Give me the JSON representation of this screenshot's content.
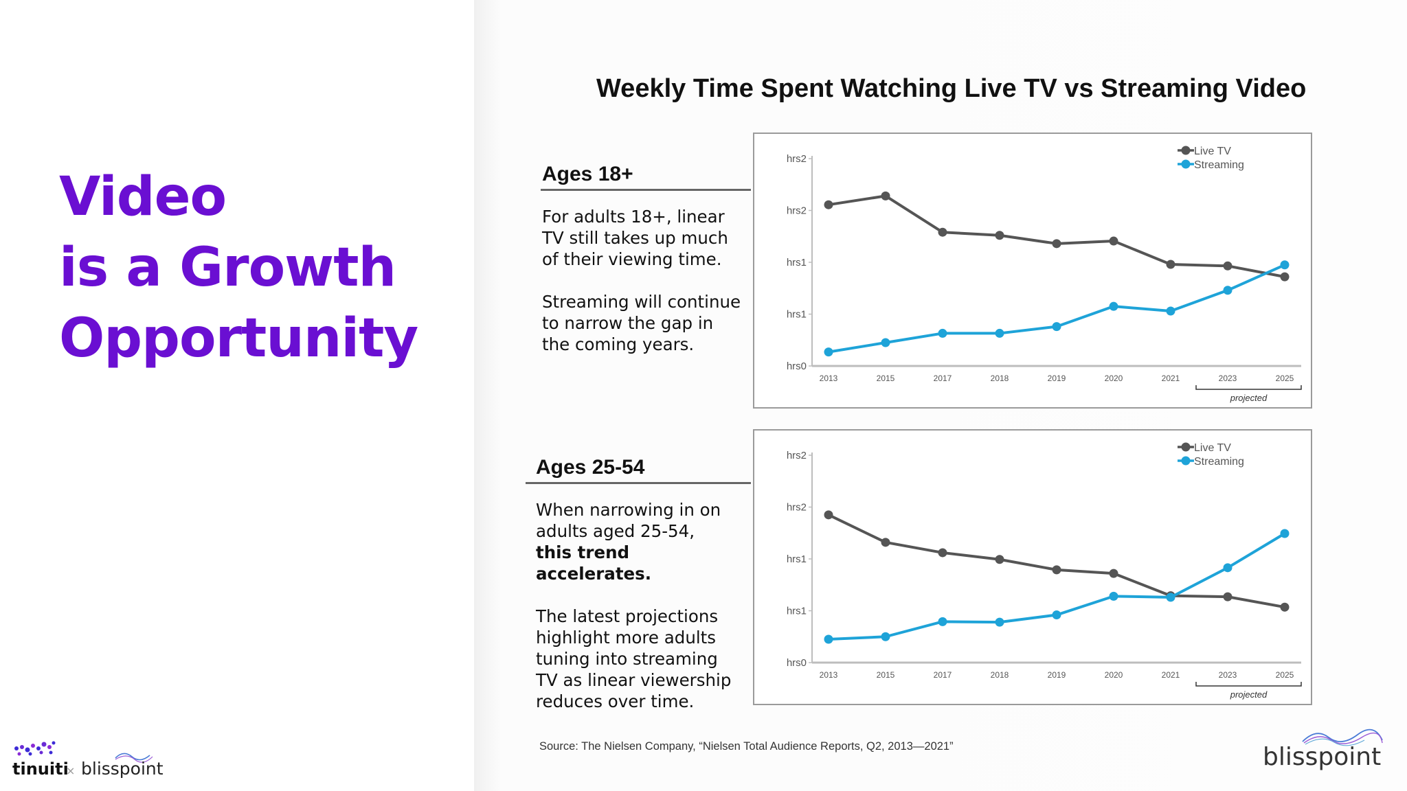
{
  "headline": {
    "line1": "Video",
    "line2": "is a Growth",
    "line3": "Opportunity"
  },
  "slide_title": "Weekly Time Spent Watching Live TV vs Streaming Video",
  "section_1": {
    "heading": "Ages 18+",
    "para1": "For adults 18+, linear TV still takes up much of their viewing time.",
    "para2": "Streaming will continue to narrow the gap in the coming years."
  },
  "section_2": {
    "heading": "Ages 25-54",
    "para1_a": "When narrowing in on adults aged 25-54,",
    "para1_b": "this trend accelerates.",
    "para2": "The latest projections highlight more adults tuning into streaming TV as linear viewership reduces over time."
  },
  "source": "Source: The Nielsen Company, “Nielsen Total Audience Reports, Q2, 2013—2021”",
  "logos": {
    "tinuiti": "tinuiti",
    "x": "×",
    "blisspoint_small": "blisspoint",
    "blisspoint_large": "blisspoint"
  },
  "colors": {
    "headline": "#6a0fd2",
    "live_tv": "#555555",
    "streaming": "#1ea3d8"
  },
  "chart_data": [
    {
      "type": "line",
      "title": "",
      "x": [
        "2013",
        "2015",
        "2017",
        "2018",
        "2019",
        "2020",
        "2021",
        "2023",
        "2025"
      ],
      "y_tick_labels": [
        "hrs0",
        "hrs1",
        "hrs1",
        "hrs2",
        "hrs2"
      ],
      "ylim": [
        0,
        4
      ],
      "series": [
        {
          "name": "Live TV",
          "color": "#555555",
          "values": [
            3.11,
            3.28,
            2.58,
            2.52,
            2.36,
            2.41,
            1.96,
            1.93,
            1.72
          ]
        },
        {
          "name": "Streaming",
          "color": "#1ea3d8",
          "values": [
            0.27,
            0.45,
            0.63,
            0.63,
            0.76,
            1.15,
            1.06,
            1.46,
            1.95
          ]
        }
      ],
      "annotation": "projected",
      "legend": "top-right",
      "grid": false
    },
    {
      "type": "line",
      "title": "",
      "x": [
        "2013",
        "2015",
        "2017",
        "2018",
        "2019",
        "2020",
        "2021",
        "2023",
        "2025"
      ],
      "y_tick_labels": [
        "hrs0",
        "hrs1",
        "hrs1",
        "hrs2",
        "hrs2"
      ],
      "ylim": [
        0,
        4
      ],
      "series": [
        {
          "name": "Live TV",
          "color": "#555555",
          "values": [
            2.85,
            2.32,
            2.12,
            1.99,
            1.79,
            1.72,
            1.29,
            1.27,
            1.07
          ]
        },
        {
          "name": "Streaming",
          "color": "#1ea3d8",
          "values": [
            0.45,
            0.5,
            0.79,
            0.78,
            0.92,
            1.28,
            1.26,
            1.83,
            2.49
          ]
        }
      ],
      "annotation": "projected",
      "legend": "top-right",
      "grid": false
    }
  ]
}
